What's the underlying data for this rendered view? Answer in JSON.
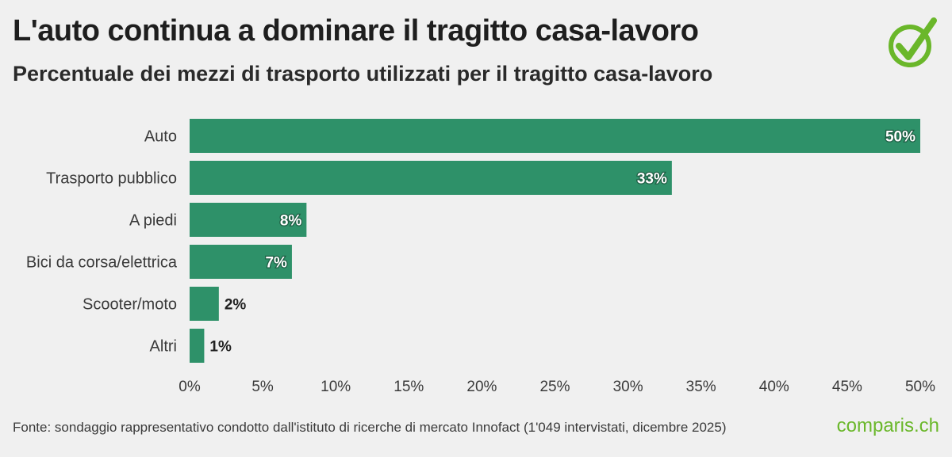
{
  "header": {
    "title": "L'auto continua a dominare il tragitto casa-lavoro",
    "subtitle": "Percentuale dei mezzi di trasporto utilizzati per il tragitto casa-lavoro"
  },
  "footer": {
    "source": "Fonte: sondaggio rappresentativo condotto dall'istituto di ricerche di mercato Innofact (1'049 intervistati, dicembre 2025)",
    "brand": "comparis.ch"
  },
  "colors": {
    "bar": "#2e9169",
    "label_inside": "#ffffff",
    "label_outside": "#222222",
    "brand_green": "#6ab72a"
  },
  "chart_data": {
    "type": "bar",
    "orientation": "horizontal",
    "categories": [
      "Auto",
      "Trasporto pubblico",
      "A piedi",
      "Bici da corsa/elettrica",
      "Scooter/moto",
      "Altri"
    ],
    "values": [
      50,
      33,
      8,
      7,
      2,
      1
    ],
    "data_labels": [
      "50%",
      "33%",
      "8%",
      "7%",
      "2%",
      "1%"
    ],
    "xlim": [
      0,
      50
    ],
    "xticks": [
      0,
      5,
      10,
      15,
      20,
      25,
      30,
      35,
      40,
      45,
      50
    ],
    "xtick_labels": [
      "0%",
      "5%",
      "10%",
      "15%",
      "20%",
      "25%",
      "30%",
      "35%",
      "40%",
      "45%",
      "50%"
    ],
    "grid": false,
    "legend": "none"
  }
}
